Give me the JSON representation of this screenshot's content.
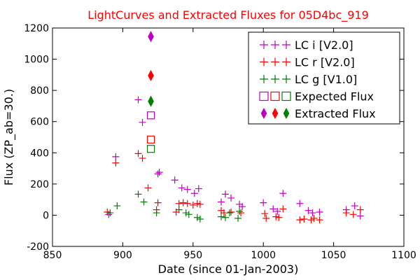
{
  "chart_data": {
    "type": "scatter",
    "title": "LightCurves and Extracted Fluxes for 05D4bc_919",
    "xlabel": "Date (since 01-Jan-2003)",
    "ylabel": "Flux (ZP_ab=30.)",
    "xlim": [
      850,
      1100
    ],
    "ylim": [
      -200,
      1200
    ],
    "x_ticks": [
      "850",
      "900",
      "950",
      "1000",
      "1050",
      "1100"
    ],
    "y_ticks": [
      "-200",
      "0",
      "200",
      "400",
      "600",
      "800",
      "1000",
      "1200"
    ],
    "grid": false,
    "legend_position": "top-right",
    "colors": {
      "title": "#ff0000",
      "i": "#bf00bf",
      "r": "#ff0000",
      "g": "#008000"
    },
    "series": [
      {
        "name": "LC i [V2.0]",
        "marker": "plus",
        "color": "#bf00bf",
        "points": [
          [
            890,
            5
          ],
          [
            895,
            375
          ],
          [
            911,
            740
          ],
          [
            914,
            595
          ],
          [
            925,
            265
          ],
          [
            926,
            275
          ],
          [
            937,
            225
          ],
          [
            942,
            175
          ],
          [
            946,
            165
          ],
          [
            951,
            140
          ],
          [
            954,
            170
          ],
          [
            970,
            85
          ],
          [
            973,
            135
          ],
          [
            977,
            110
          ],
          [
            983,
            70
          ],
          [
            985,
            55
          ],
          [
            1000,
            80
          ],
          [
            1007,
            40
          ],
          [
            1010,
            25
          ],
          [
            1014,
            140
          ],
          [
            1026,
            75
          ],
          [
            1032,
            30
          ],
          [
            1035,
            15
          ],
          [
            1040,
            20
          ],
          [
            1059,
            35
          ],
          [
            1065,
            60
          ],
          [
            1069,
            -5
          ]
        ]
      },
      {
        "name": "LC r [V2.0]",
        "marker": "plus",
        "color": "#ff0000",
        "points": [
          [
            889,
            20
          ],
          [
            895,
            335
          ],
          [
            911,
            395
          ],
          [
            914,
            365
          ],
          [
            918,
            175
          ],
          [
            925,
            80
          ],
          [
            924,
            35
          ],
          [
            938,
            20
          ],
          [
            940,
            75
          ],
          [
            943,
            80
          ],
          [
            946,
            75
          ],
          [
            950,
            65
          ],
          [
            953,
            75
          ],
          [
            955,
            70
          ],
          [
            970,
            30
          ],
          [
            972,
            15
          ],
          [
            977,
            20
          ],
          [
            984,
            15
          ],
          [
            1001,
            10
          ],
          [
            1002,
            -20
          ],
          [
            1009,
            -10
          ],
          [
            1011,
            -15
          ],
          [
            1014,
            40
          ],
          [
            1026,
            -30
          ],
          [
            1029,
            -25
          ],
          [
            1034,
            -30
          ],
          [
            1036,
            -20
          ],
          [
            1040,
            -30
          ],
          [
            1059,
            15
          ],
          [
            1064,
            5
          ],
          [
            1069,
            35
          ]
        ]
      },
      {
        "name": "LC g [V1.0]",
        "marker": "plus",
        "color": "#008000",
        "points": [
          [
            891,
            15
          ],
          [
            896,
            60
          ],
          [
            911,
            135
          ],
          [
            915,
            85
          ],
          [
            924,
            15
          ],
          [
            940,
            35
          ],
          [
            945,
            15
          ],
          [
            947,
            5
          ],
          [
            953,
            -15
          ],
          [
            955,
            -25
          ],
          [
            970,
            -10
          ],
          [
            973,
            -15
          ],
          [
            976,
            15
          ],
          [
            982,
            -20
          ],
          [
            983,
            25
          ]
        ]
      },
      {
        "name": "Expected Flux",
        "marker": "square",
        "points": [
          [
            920,
            640,
            "#bf00bf"
          ],
          [
            920,
            485,
            "#ff0000"
          ],
          [
            920,
            425,
            "#008000"
          ]
        ]
      },
      {
        "name": "Extracted Flux",
        "marker": "diamond",
        "points": [
          [
            920,
            1145,
            "#bf00bf"
          ],
          [
            920,
            895,
            "#ff0000"
          ],
          [
            920,
            730,
            "#008000"
          ]
        ]
      }
    ]
  }
}
